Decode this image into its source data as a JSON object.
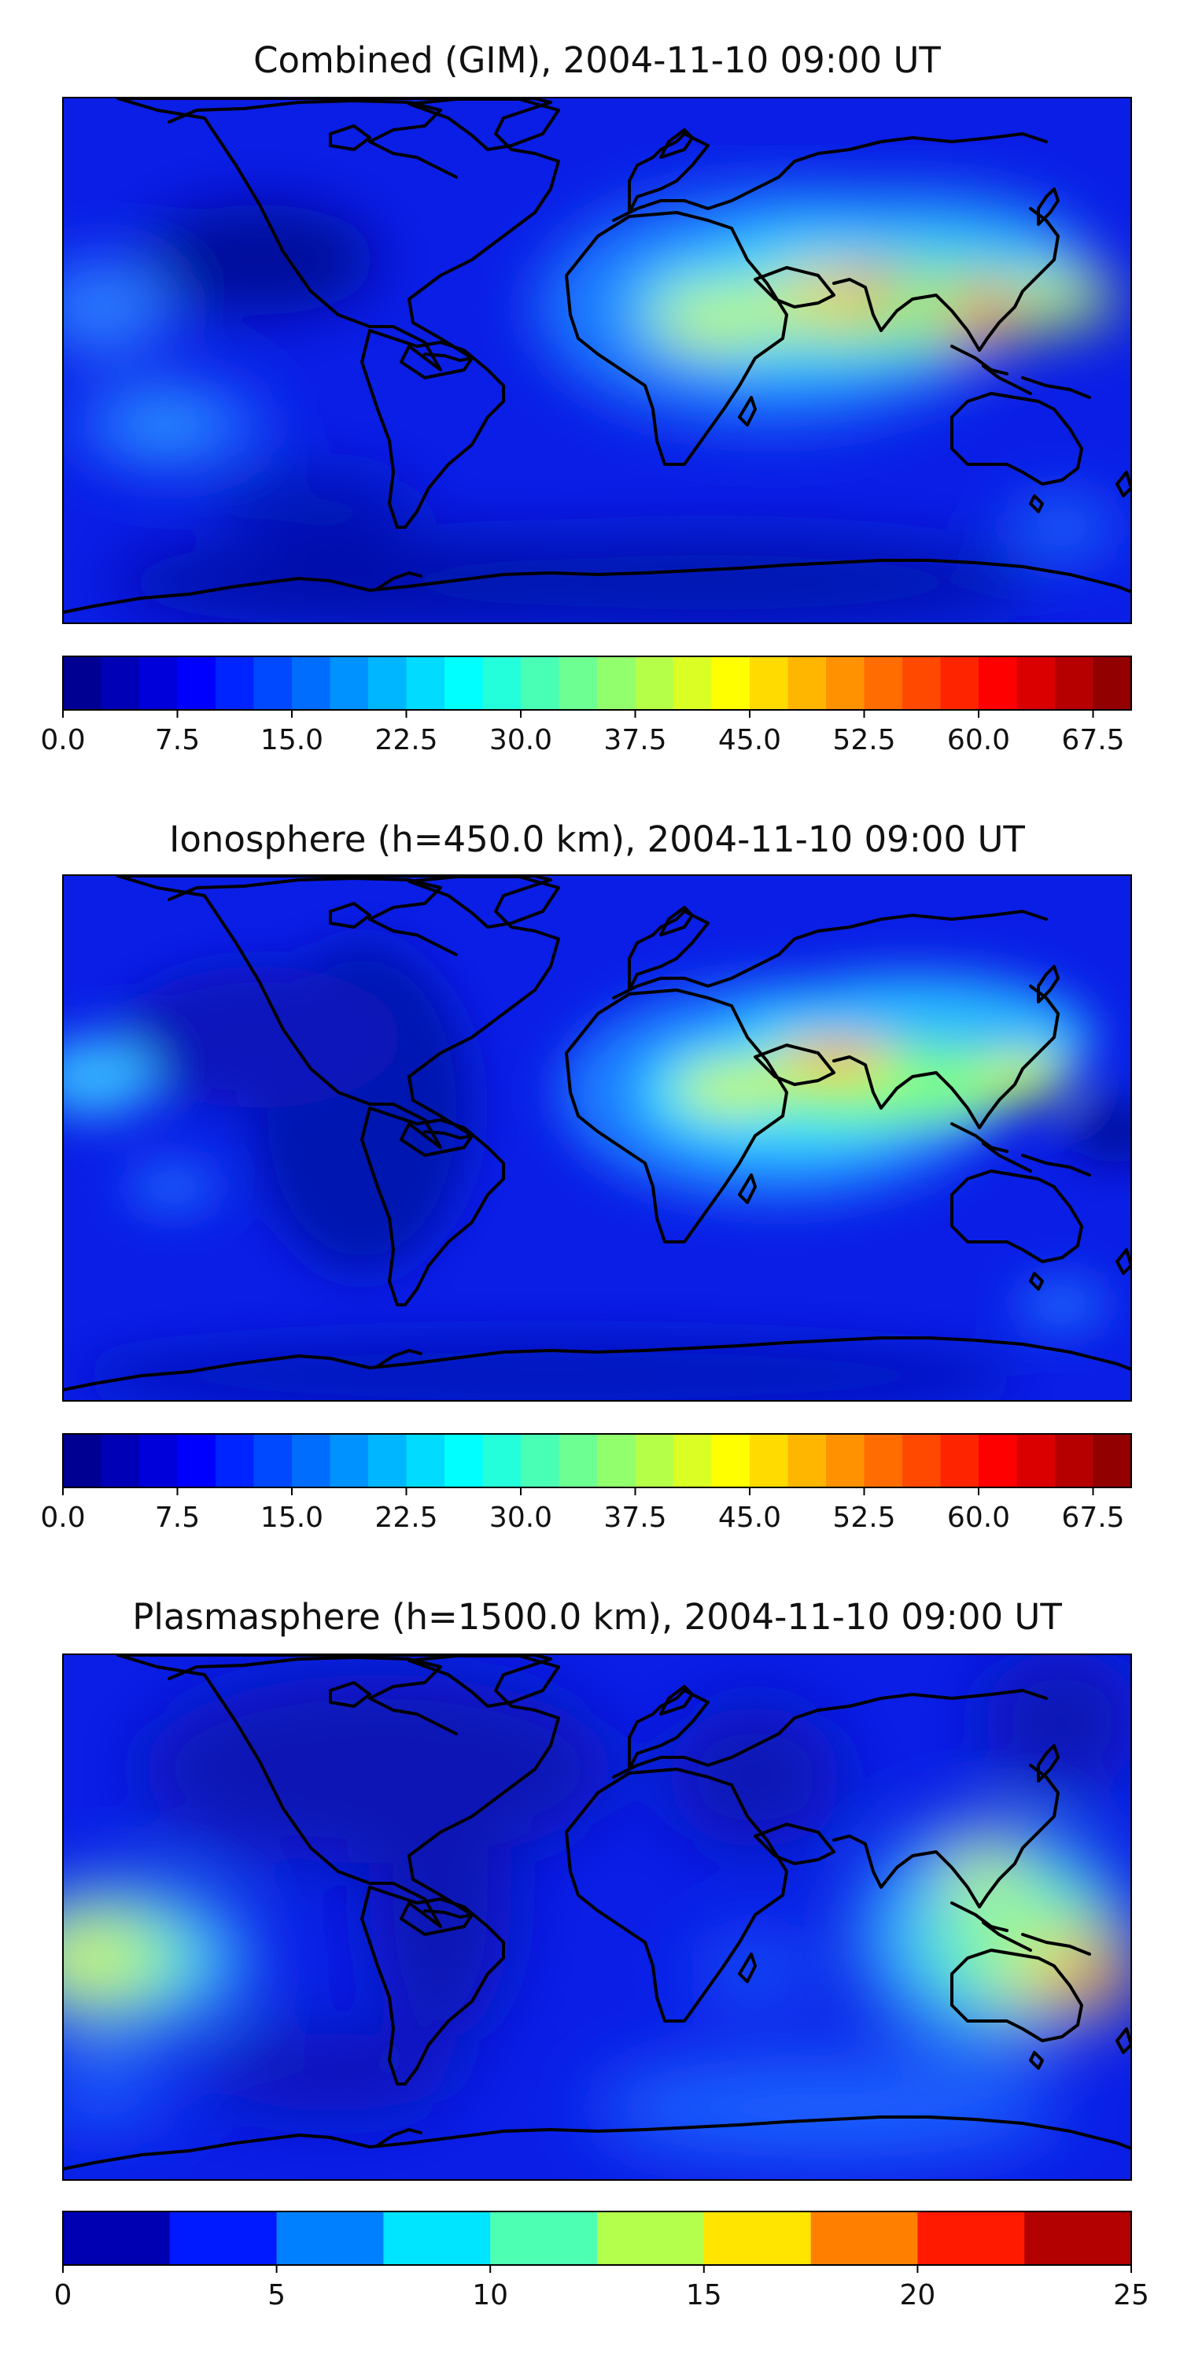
{
  "panels": [
    {
      "id": "combined",
      "title": "Combined (GIM), 2004-11-10 09:00 UT",
      "colorbar": {
        "min": 0,
        "max": 70,
        "levels": 28,
        "ticks": [
          "0.0",
          "7.5",
          "15.0",
          "22.5",
          "30.0",
          "37.5",
          "45.0",
          "52.5",
          "60.0",
          "67.5"
        ],
        "tick_values": [
          0,
          7.5,
          15,
          22.5,
          30,
          37.5,
          45,
          52.5,
          60,
          67.5
        ]
      }
    },
    {
      "id": "ionosphere",
      "title": "Ionosphere  (h=450.0 km), 2004-11-10 09:00 UT",
      "colorbar": {
        "min": 0,
        "max": 70,
        "levels": 28,
        "ticks": [
          "0.0",
          "7.5",
          "15.0",
          "22.5",
          "30.0",
          "37.5",
          "45.0",
          "52.5",
          "60.0",
          "67.5"
        ],
        "tick_values": [
          0,
          7.5,
          15,
          22.5,
          30,
          37.5,
          45,
          52.5,
          60,
          67.5
        ]
      }
    },
    {
      "id": "plasmasphere",
      "title": "Plasmasphere (h=1500.0 km), 2004-11-10 09:00 UT",
      "colorbar": {
        "min": 0,
        "max": 25,
        "levels": 10,
        "ticks": [
          "0",
          "5",
          "10",
          "15",
          "20",
          "25"
        ],
        "tick_values": [
          0,
          5,
          10,
          15,
          20,
          25
        ]
      }
    }
  ],
  "colormap": "jet"
}
